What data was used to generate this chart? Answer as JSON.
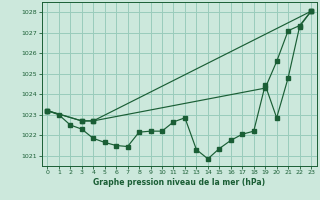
{
  "bg_color": "#cce8dc",
  "grid_color": "#99ccbb",
  "line_color": "#1a5e35",
  "title": "Graphe pression niveau de la mer (hPa)",
  "title_color": "#1a5e35",
  "xlim": [
    -0.5,
    23.5
  ],
  "ylim": [
    1020.5,
    1028.5
  ],
  "yticks": [
    1021,
    1022,
    1023,
    1024,
    1025,
    1026,
    1027,
    1028
  ],
  "xticks": [
    0,
    1,
    2,
    3,
    4,
    5,
    6,
    7,
    8,
    9,
    10,
    11,
    12,
    13,
    14,
    15,
    16,
    17,
    18,
    19,
    20,
    21,
    22,
    23
  ],
  "line1_x": [
    0,
    1,
    2,
    3,
    4,
    5,
    6,
    7,
    8,
    9,
    10,
    11,
    12,
    13,
    14,
    15,
    16,
    17,
    18,
    19,
    20,
    21,
    22,
    23
  ],
  "line1_y": [
    1023.2,
    1023.0,
    1022.5,
    1022.3,
    1021.85,
    1021.65,
    1021.5,
    1021.45,
    1022.15,
    1022.2,
    1022.2,
    1022.65,
    1022.85,
    1021.3,
    1020.85,
    1021.35,
    1021.75,
    1022.05,
    1022.2,
    1024.45,
    1022.85,
    1024.8,
    1027.3,
    1028.05
  ],
  "line2_x": [
    0,
    3,
    4,
    23
  ],
  "line2_y": [
    1023.2,
    1022.7,
    1022.7,
    1028.05
  ],
  "line3_x": [
    0,
    3,
    4,
    19,
    20,
    21,
    22,
    23
  ],
  "line3_y": [
    1023.2,
    1022.7,
    1022.7,
    1024.3,
    1025.6,
    1027.1,
    1027.35,
    1028.05
  ]
}
